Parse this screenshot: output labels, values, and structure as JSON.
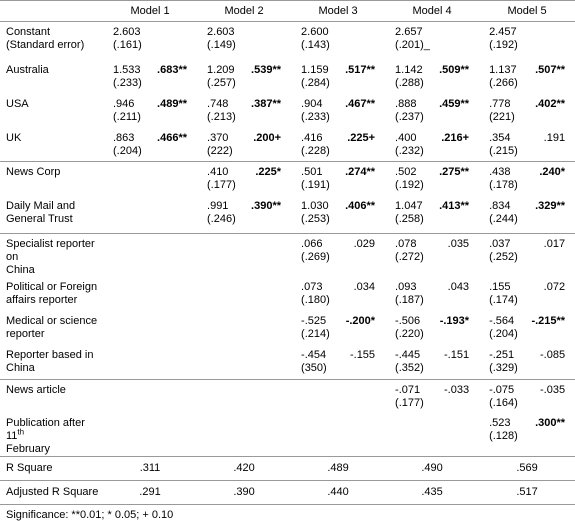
{
  "headers": [
    "",
    "Model 1",
    "Model 2",
    "Model 3",
    "Model 4",
    "Model 5"
  ],
  "rows": [
    {
      "label1": "Constant",
      "label2": "(Standard error)",
      "m1": [
        "2.603",
        "(.161)",
        ""
      ],
      "m2": [
        "2.603",
        "(.149)",
        ""
      ],
      "m3": [
        "2.600",
        "(.143)",
        ""
      ],
      "m4": [
        "2.657",
        "(.201)_",
        ""
      ],
      "m5": [
        "2.457",
        "(.192)",
        ""
      ]
    },
    {
      "label1": "Australia",
      "label2": "",
      "m1": [
        "1.533",
        "(.233)",
        ".683**"
      ],
      "m2": [
        "1.209",
        "(.257)",
        ".539**"
      ],
      "m3": [
        "1.159",
        "(.284)",
        ".517**"
      ],
      "m4": [
        "1.142",
        "(.288)",
        ".509**"
      ],
      "m5": [
        "1.137",
        "(.266)",
        ".507**"
      ]
    },
    {
      "label1": "USA",
      "label2": "",
      "m1": [
        ".946",
        "(.211)",
        ".489**"
      ],
      "m2": [
        ".748",
        "(.213)",
        ".387**"
      ],
      "m3": [
        ".904",
        "(.233)",
        ".467**"
      ],
      "m4": [
        ".888",
        "(.237)",
        ".459**"
      ],
      "m5": [
        ".778",
        "(221)",
        ".402**"
      ]
    },
    {
      "label1": "UK",
      "label2": "",
      "m1": [
        ".863",
        "(.204)",
        ".466**"
      ],
      "m2": [
        ".370",
        "(222)",
        ".200+"
      ],
      "m3": [
        ".416",
        "(.228)",
        ".225+"
      ],
      "m4": [
        ".400",
        "(.232)",
        ".216+"
      ],
      "m5": [
        ".354",
        "(.215)",
        ".191"
      ]
    },
    {
      "label1": "News Corp",
      "label2": "",
      "m1": [
        "",
        "",
        ""
      ],
      "m2": [
        ".410",
        "(.177)",
        ".225*"
      ],
      "m3": [
        ".501",
        "(.191)",
        ".274**"
      ],
      "m4": [
        ".502",
        "(.192)",
        ".275**"
      ],
      "m5": [
        ".438",
        "(.178)",
        ".240*"
      ]
    },
    {
      "label1": "Daily Mail and",
      "label2": "General Trust",
      "m1": [
        "",
        "",
        ""
      ],
      "m2": [
        ".991",
        "(.246)",
        ".390**"
      ],
      "m3": [
        "1.030",
        "(.253)",
        ".406**"
      ],
      "m4": [
        "1.047",
        "(.258)",
        ".413**"
      ],
      "m5": [
        ".834",
        "(.244)",
        ".329**"
      ]
    },
    {
      "label1": "Specialist reporter on",
      "label2": "China",
      "m1": [
        "",
        "",
        ""
      ],
      "m2": [
        "",
        "",
        ""
      ],
      "m3": [
        ".066",
        "(.269)",
        ".029"
      ],
      "m4": [
        ".078",
        "(.272)",
        ".035"
      ],
      "m5": [
        ".037",
        "(.252)",
        ".017"
      ]
    },
    {
      "label1": "Political or Foreign",
      "label2": "affairs reporter",
      "m1": [
        "",
        "",
        ""
      ],
      "m2": [
        "",
        "",
        ""
      ],
      "m3": [
        ".073",
        "(.180)",
        ".034"
      ],
      "m4": [
        ".093",
        "(.187)",
        ".043"
      ],
      "m5": [
        ".155",
        "(.174)",
        ".072"
      ]
    },
    {
      "label1": "Medical or science",
      "label2": "reporter",
      "m1": [
        "",
        "",
        ""
      ],
      "m2": [
        "",
        "",
        ""
      ],
      "m3": [
        "-.525",
        "(.214)",
        "-.200*"
      ],
      "m4": [
        "-.506",
        "(.220)",
        "-.193*"
      ],
      "m5": [
        "-.564",
        "(.204)",
        "-.215**"
      ]
    },
    {
      "label1": "Reporter based in",
      "label2": "China",
      "m1": [
        "",
        "",
        ""
      ],
      "m2": [
        "",
        "",
        ""
      ],
      "m3": [
        "-.454",
        "(350)",
        "-.155"
      ],
      "m4": [
        "-.445",
        "(.352)",
        "-.151"
      ],
      "m5": [
        "-.251",
        "(.329)",
        "-.085"
      ]
    },
    {
      "label1": "News article",
      "label2": "",
      "m1": [
        "",
        "",
        ""
      ],
      "m2": [
        "",
        "",
        ""
      ],
      "m3": [
        "",
        "",
        ""
      ],
      "m4": [
        "-.071",
        "(.177)",
        "-.033"
      ],
      "m5": [
        "-.075",
        "(.164)",
        "-.035"
      ]
    },
    {
      "label1": "Publication after 11th",
      "label2": "February",
      "m1": [
        "",
        "",
        ""
      ],
      "m2": [
        "",
        "",
        ""
      ],
      "m3": [
        "",
        "",
        ""
      ],
      "m4": [
        "",
        "",
        ""
      ],
      "m5": [
        ".523",
        "(.128)",
        ".300**"
      ]
    }
  ],
  "summary": [
    {
      "label": "R Square",
      "values": [
        ".311",
        ".420",
        ".489",
        ".490",
        ".569"
      ]
    },
    {
      "label": "Adjusted R Square",
      "values": [
        ".291",
        ".390",
        ".440",
        ".435",
        ".517"
      ]
    }
  ],
  "note": "Significance: **0.01; * 0.05; + 0.10"
}
